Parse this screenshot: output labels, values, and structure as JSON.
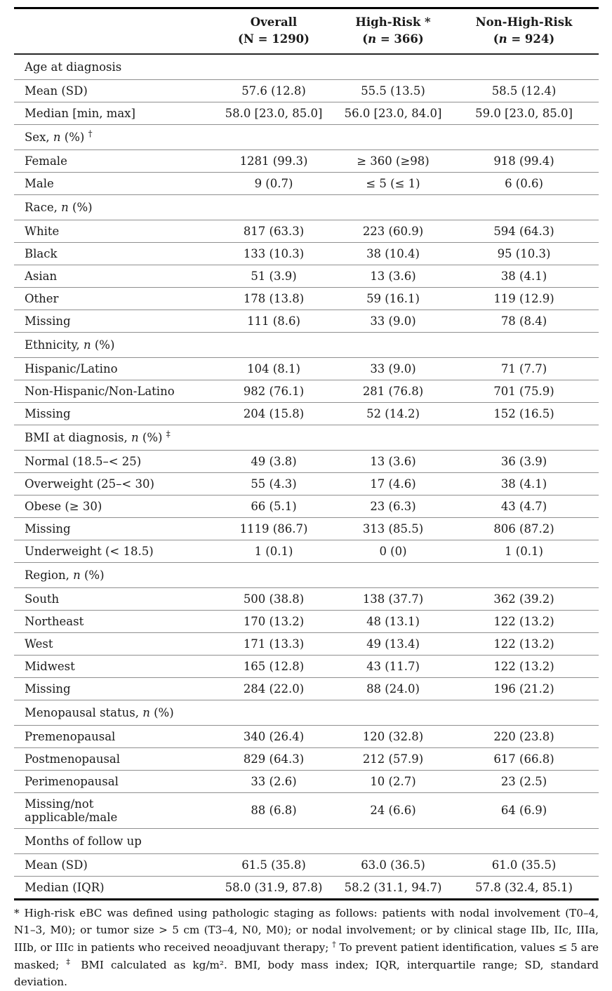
{
  "page": {
    "background_color": "#ffffff",
    "text_color": "#1a1a1a",
    "rule_color_heavy": "#000000",
    "rule_color_light": "#8f8f8f"
  },
  "table": {
    "header": {
      "row_label_header": "",
      "columns": [
        {
          "title": "Overall",
          "subtitle": "(N = 1290)"
        },
        {
          "title": "High-Risk *",
          "subtitle": "(n = 366)"
        },
        {
          "title": "Non-High-Risk",
          "subtitle": "(n = 924)"
        }
      ]
    },
    "sections": [
      {
        "label": "Age at diagnosis",
        "rows": [
          {
            "label": "Mean (SD)",
            "values": [
              "57.6 (12.8)",
              "55.5 (13.5)",
              "58.5 (12.4)"
            ]
          },
          {
            "label": "Median [min, max]",
            "values": [
              "58.0 [23.0, 85.0]",
              "56.0 [23.0, 84.0]",
              "59.0 [23.0, 85.0]"
            ]
          }
        ]
      },
      {
        "label": "Sex, n (%) †",
        "rows": [
          {
            "label": "Female",
            "values": [
              "1281 (99.3)",
              "≥ 360 (≥98)",
              "918 (99.4)"
            ]
          },
          {
            "label": "Male",
            "values": [
              "9 (0.7)",
              "≤ 5 (≤ 1)",
              "6 (0.6)"
            ]
          }
        ]
      },
      {
        "label": "Race, n (%)",
        "rows": [
          {
            "label": "White",
            "values": [
              "817 (63.3)",
              "223 (60.9)",
              "594 (64.3)"
            ]
          },
          {
            "label": "Black",
            "values": [
              "133 (10.3)",
              "38 (10.4)",
              "95 (10.3)"
            ]
          },
          {
            "label": "Asian",
            "values": [
              "51 (3.9)",
              "13 (3.6)",
              "38 (4.1)"
            ]
          },
          {
            "label": "Other",
            "values": [
              "178 (13.8)",
              "59 (16.1)",
              "119 (12.9)"
            ]
          },
          {
            "label": "Missing",
            "values": [
              "111 (8.6)",
              "33 (9.0)",
              "78 (8.4)"
            ]
          }
        ]
      },
      {
        "label": "Ethnicity, n (%)",
        "rows": [
          {
            "label": "Hispanic/Latino",
            "values": [
              "104 (8.1)",
              "33 (9.0)",
              "71 (7.7)"
            ]
          },
          {
            "label": "Non-Hispanic/Non-Latino",
            "values": [
              "982 (76.1)",
              "281 (76.8)",
              "701 (75.9)"
            ]
          },
          {
            "label": "Missing",
            "values": [
              "204 (15.8)",
              "52 (14.2)",
              "152 (16.5)"
            ]
          }
        ]
      },
      {
        "label": "BMI at diagnosis, n (%) ‡",
        "rows": [
          {
            "label": "Normal (18.5–< 25)",
            "values": [
              "49 (3.8)",
              "13 (3.6)",
              "36 (3.9)"
            ]
          },
          {
            "label": "Overweight (25–< 30)",
            "values": [
              "55 (4.3)",
              "17 (4.6)",
              "38 (4.1)"
            ]
          },
          {
            "label": "Obese (≥ 30)",
            "values": [
              "66 (5.1)",
              "23 (6.3)",
              "43 (4.7)"
            ]
          },
          {
            "label": "Missing",
            "values": [
              "1119 (86.7)",
              "313 (85.5)",
              "806 (87.2)"
            ]
          },
          {
            "label": "Underweight (< 18.5)",
            "values": [
              "1 (0.1)",
              "0 (0)",
              "1 (0.1)"
            ]
          }
        ]
      },
      {
        "label": "Region, n (%)",
        "rows": [
          {
            "label": "South",
            "values": [
              "500 (38.8)",
              "138 (37.7)",
              "362 (39.2)"
            ]
          },
          {
            "label": "Northeast",
            "values": [
              "170 (13.2)",
              "48 (13.1)",
              "122 (13.2)"
            ]
          },
          {
            "label": "West",
            "values": [
              "171 (13.3)",
              "49 (13.4)",
              "122 (13.2)"
            ]
          },
          {
            "label": "Midwest",
            "values": [
              "165 (12.8)",
              "43 (11.7)",
              "122 (13.2)"
            ]
          },
          {
            "label": "Missing",
            "values": [
              "284 (22.0)",
              "88 (24.0)",
              "196 (21.2)"
            ]
          }
        ]
      },
      {
        "label": "Menopausal status, n (%)",
        "rows": [
          {
            "label": "Premenopausal",
            "values": [
              "340 (26.4)",
              "120 (32.8)",
              "220 (23.8)"
            ]
          },
          {
            "label": "Postmenopausal",
            "values": [
              "829 (64.3)",
              "212 (57.9)",
              "617 (66.8)"
            ]
          },
          {
            "label": "Perimenopausal",
            "values": [
              "33 (2.6)",
              "10 (2.7)",
              "23 (2.5)"
            ]
          },
          {
            "label": "Missing/not\napplicable/male",
            "values": [
              "88 (6.8)",
              "24 (6.6)",
              "64 (6.9)"
            ]
          }
        ]
      },
      {
        "label": "Months of follow up",
        "rows": [
          {
            "label": "Mean (SD)",
            "values": [
              "61.5 (35.8)",
              "63.0 (36.5)",
              "61.0 (35.5)"
            ]
          },
          {
            "label": "Median (IQR)",
            "values": [
              "58.0 (31.9, 87.8)",
              "58.2 (31.1, 94.7)",
              "57.8 (32.4, 85.1)"
            ]
          }
        ]
      }
    ],
    "footnote": "* High-risk eBC was defined using pathologic staging as follows: patients with nodal involvement (T0–4, N1–3, M0); or tumor size > 5 cm (T3–4, N0, M0); or nodal involvement; or by clinical stage IIb, IIc, IIIa, IIIb, or IIIc in patients who received neoadjuvant therapy; † To prevent patient identification, values ≤ 5 are masked; ‡ BMI calculated as kg/m². BMI, body mass index; IQR, interquartile range; SD, standard deviation."
  }
}
